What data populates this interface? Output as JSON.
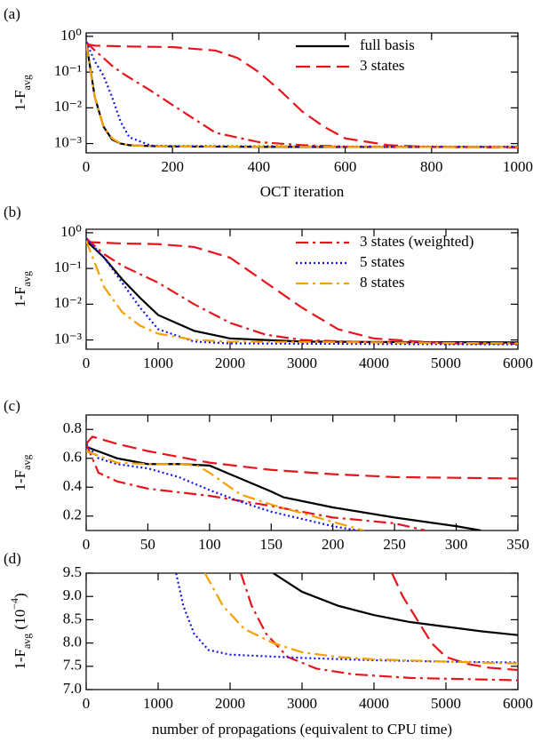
{
  "chart_data": [
    {
      "type": "line",
      "panel_label": "(a)",
      "log_y": true,
      "y_label": [
        {
          "text": "1-F"
        },
        {
          "text": "avg",
          "shift": "sub"
        }
      ],
      "x_label": "OCT iteration",
      "xlim": [
        0,
        1000
      ],
      "xticks": [
        0,
        200,
        400,
        600,
        800,
        1000
      ],
      "ylim": [
        0.00055,
        1.25
      ],
      "yticks": [
        {
          "value": 0.001,
          "label": "10⁻³"
        },
        {
          "value": 0.01,
          "label": "10⁻²"
        },
        {
          "value": 0.1,
          "label": "10⁻¹"
        },
        {
          "value": 1,
          "label": "10⁰"
        }
      ],
      "legend_position": "upper right",
      "series": [
        {
          "name": "full basis",
          "color": "#000000",
          "linestyle": "solid",
          "x": [
            0,
            20,
            40,
            60,
            80,
            100,
            150,
            200,
            400,
            600,
            1000
          ],
          "values": [
            0.7,
            0.02,
            0.003,
            0.0013,
            0.001,
            0.0009,
            0.00085,
            0.00083,
            0.00081,
            0.0008,
            0.0008
          ]
        },
        {
          "name": "3 states",
          "color": "#e8141c",
          "linestyle": "dashed",
          "x": [
            0,
            20,
            100,
            200,
            300,
            350,
            400,
            450,
            500,
            550,
            600,
            700,
            800,
            1000
          ],
          "values": [
            0.6,
            0.55,
            0.52,
            0.5,
            0.4,
            0.25,
            0.1,
            0.03,
            0.008,
            0.003,
            0.0014,
            0.0009,
            0.0008,
            0.00078
          ]
        },
        {
          "color": "#e8141c",
          "linestyle": "dashdot",
          "x": [
            0,
            20,
            40,
            60,
            80,
            100,
            150,
            200,
            300,
            400,
            500,
            600,
            1000
          ],
          "values": [
            0.7,
            0.4,
            0.25,
            0.15,
            0.1,
            0.07,
            0.03,
            0.012,
            0.002,
            0.0011,
            0.0009,
            0.00082,
            0.0008
          ]
        },
        {
          "color": "#1414e8",
          "linestyle": "dotted",
          "x": [
            0,
            20,
            40,
            60,
            80,
            100,
            150,
            200,
            600,
            1000
          ],
          "values": [
            0.7,
            0.2,
            0.08,
            0.02,
            0.004,
            0.0015,
            0.00088,
            0.00085,
            0.00083,
            0.00082
          ]
        },
        {
          "color": "#f5a000",
          "linestyle": "dashdot",
          "x": [
            0,
            20,
            40,
            60,
            80,
            100,
            150,
            200,
            1000
          ],
          "values": [
            0.6,
            0.02,
            0.003,
            0.0014,
            0.001,
            0.0009,
            0.00085,
            0.00082,
            0.0008
          ]
        }
      ]
    },
    {
      "type": "line",
      "panel_label": "(b)",
      "log_y": true,
      "y_label": [
        {
          "text": "1-F"
        },
        {
          "text": "avg",
          "shift": "sub"
        }
      ],
      "xlim": [
        0,
        6000
      ],
      "xticks": [
        0,
        1000,
        2000,
        3000,
        4000,
        5000,
        6000
      ],
      "ylim": [
        0.00055,
        1.25
      ],
      "yticks": [
        {
          "value": 0.001,
          "label": "10⁻³"
        },
        {
          "value": 0.01,
          "label": "10⁻²"
        },
        {
          "value": 0.1,
          "label": "10⁻¹"
        },
        {
          "value": 1,
          "label": "10⁰"
        }
      ],
      "legend_position": "upper right",
      "series": [
        {
          "color": "#000000",
          "linestyle": "solid",
          "x": [
            0,
            250,
            500,
            750,
            1000,
            1500,
            2000,
            3000,
            4000,
            6000
          ],
          "values": [
            0.6,
            0.2,
            0.05,
            0.015,
            0.005,
            0.0018,
            0.0011,
            0.0009,
            0.00088,
            0.00085
          ]
        },
        {
          "color": "#e8141c",
          "linestyle": "dashed",
          "x": [
            0,
            500,
            1000,
            1500,
            2000,
            2500,
            3000,
            3500,
            4000,
            5000,
            6000
          ],
          "values": [
            0.55,
            0.5,
            0.48,
            0.4,
            0.2,
            0.04,
            0.008,
            0.002,
            0.0011,
            0.0008,
            0.00078
          ]
        },
        {
          "name": "3 states (weighted)",
          "color": "#e8141c",
          "linestyle": "dashdot",
          "x": [
            0,
            250,
            500,
            1000,
            1500,
            2000,
            2500,
            3000,
            4000,
            6000
          ],
          "values": [
            0.7,
            0.25,
            0.12,
            0.04,
            0.01,
            0.003,
            0.0014,
            0.001,
            0.00085,
            0.0008
          ]
        },
        {
          "name": "5 states",
          "color": "#1414e8",
          "linestyle": "dotted",
          "x": [
            0,
            250,
            500,
            750,
            1000,
            1500,
            2000,
            4000,
            6000
          ],
          "values": [
            0.7,
            0.2,
            0.04,
            0.008,
            0.002,
            0.0009,
            0.0008,
            0.00077,
            0.00075
          ]
        },
        {
          "name": "8 states",
          "color": "#f5a000",
          "linestyle": "dashdot",
          "x": [
            0,
            250,
            500,
            750,
            1000,
            1500,
            2000,
            6000
          ],
          "values": [
            0.6,
            0.03,
            0.006,
            0.0025,
            0.0015,
            0.001,
            0.0009,
            0.0008
          ]
        }
      ]
    },
    {
      "type": "line",
      "panel_label": "(c)",
      "log_y": false,
      "y_label": [
        {
          "text": "1-F"
        },
        {
          "text": "avg",
          "shift": "sub"
        }
      ],
      "xlim": [
        0,
        350
      ],
      "xticks": [
        0,
        50,
        100,
        150,
        200,
        250,
        300,
        350
      ],
      "ylim": [
        0.1,
        0.9
      ],
      "yticks": [
        0.2,
        0.4,
        0.6,
        0.8
      ],
      "series": [
        {
          "color": "#000000",
          "linestyle": "solid",
          "x": [
            0,
            25,
            50,
            75,
            100,
            125,
            150,
            160,
            200,
            250,
            300,
            320
          ],
          "values": [
            0.68,
            0.6,
            0.56,
            0.56,
            0.55,
            0.46,
            0.37,
            0.33,
            0.26,
            0.19,
            0.13,
            0.1
          ]
        },
        {
          "color": "#e8141c",
          "linestyle": "dashed",
          "x": [
            0,
            5,
            25,
            50,
            100,
            150,
            200,
            250,
            300,
            350
          ],
          "values": [
            0.7,
            0.75,
            0.7,
            0.65,
            0.57,
            0.52,
            0.49,
            0.47,
            0.465,
            0.46
          ]
        },
        {
          "color": "#e8141c",
          "linestyle": "dashdot",
          "x": [
            0,
            10,
            25,
            50,
            100,
            150,
            200,
            250,
            275
          ],
          "values": [
            0.7,
            0.5,
            0.44,
            0.39,
            0.34,
            0.27,
            0.19,
            0.15,
            0.1
          ]
        },
        {
          "color": "#1414e8",
          "linestyle": "dotted",
          "x": [
            0,
            10,
            25,
            50,
            75,
            100,
            125,
            150,
            200,
            220
          ],
          "values": [
            0.7,
            0.6,
            0.56,
            0.53,
            0.47,
            0.38,
            0.3,
            0.23,
            0.13,
            0.1
          ]
        },
        {
          "color": "#f5a000",
          "linestyle": "dashdot",
          "x": [
            0,
            25,
            50,
            75,
            90,
            100,
            125,
            150,
            200,
            225
          ],
          "values": [
            0.65,
            0.57,
            0.56,
            0.56,
            0.55,
            0.5,
            0.35,
            0.28,
            0.16,
            0.1
          ]
        }
      ]
    },
    {
      "type": "line",
      "panel_label": "(d)",
      "log_y": false,
      "y_label": [
        {
          "text": "1-F"
        },
        {
          "text": "avg",
          "shift": "sub"
        },
        {
          "text": " (10"
        },
        {
          "text": "−4",
          "shift": "super"
        },
        {
          "text": ")"
        }
      ],
      "x_label": "number of propagations (equivalent to CPU time)",
      "xlim": [
        0,
        6000
      ],
      "xticks": [
        0,
        1000,
        2000,
        3000,
        4000,
        5000,
        6000
      ],
      "ylim": [
        7,
        9.5
      ],
      "yticks": [
        {
          "value": 7,
          "label": "7.0"
        },
        7.5,
        {
          "value": 8,
          "label": "8.0"
        },
        8.5,
        {
          "value": 9,
          "label": "9.0"
        },
        9.5
      ],
      "series": [
        {
          "color": "#000000",
          "linestyle": "solid",
          "x": [
            2600,
            3000,
            3500,
            4000,
            4500,
            5000,
            5500,
            6000
          ],
          "values": [
            9.5,
            9.1,
            8.8,
            8.6,
            8.45,
            8.35,
            8.25,
            8.17
          ]
        },
        {
          "color": "#e8141c",
          "linestyle": "dashed",
          "x": [
            4250,
            4400,
            4600,
            4800,
            5000,
            5300,
            5600,
            6000
          ],
          "values": [
            9.5,
            9.0,
            8.5,
            8.0,
            7.7,
            7.55,
            7.47,
            7.42
          ]
        },
        {
          "color": "#e8141c",
          "linestyle": "dashdot",
          "x": [
            2150,
            2300,
            2500,
            2800,
            3200,
            3700,
            4500,
            6000
          ],
          "values": [
            9.5,
            8.8,
            8.2,
            7.7,
            7.45,
            7.33,
            7.25,
            7.2
          ]
        },
        {
          "color": "#1414e8",
          "linestyle": "dotted",
          "x": [
            1250,
            1350,
            1500,
            1700,
            2000,
            3000,
            4000,
            5000,
            6000
          ],
          "values": [
            9.5,
            8.8,
            8.2,
            7.85,
            7.75,
            7.68,
            7.63,
            7.6,
            7.58
          ]
        },
        {
          "color": "#f5a000",
          "linestyle": "dashdot",
          "x": [
            1650,
            1900,
            2200,
            2600,
            3000,
            3500,
            4000,
            5000,
            6000
          ],
          "values": [
            9.5,
            8.8,
            8.3,
            8.0,
            7.8,
            7.7,
            7.65,
            7.6,
            7.56
          ]
        }
      ]
    }
  ]
}
